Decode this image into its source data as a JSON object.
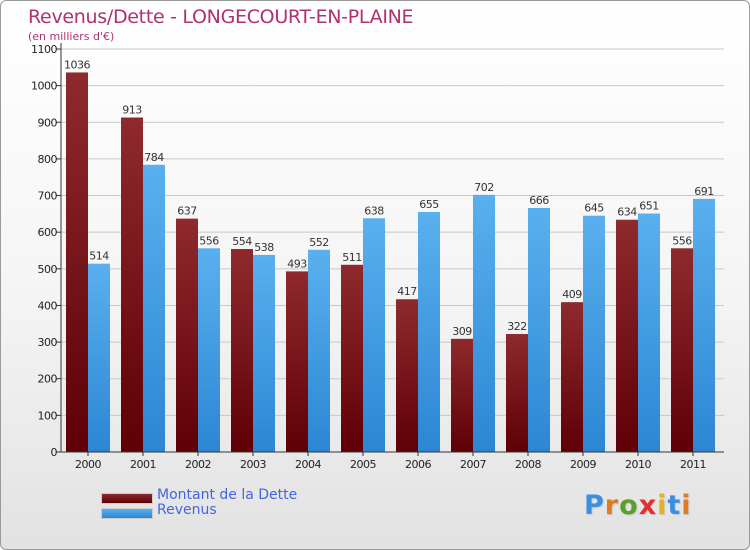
{
  "title": "Revenus/Dette - LONGECOURT-EN-PLAINE",
  "subtitle": "(en milliers d'€)",
  "logo": {
    "text": "Proxiti",
    "letter_colors": [
      "#3b8fe0",
      "#e07b20",
      "#5aa02c",
      "#e03030",
      "#e8b020",
      "#3b8fe0",
      "#e07b20"
    ]
  },
  "colors": {
    "dette_dark": "#5e0006",
    "dette_light": "#8e2a2e",
    "revenus_dark": "#2c86d3",
    "revenus_light": "#5ab0ee",
    "grid": "#c8c8c8",
    "axis_text": "#222222",
    "title": "#b03070",
    "legend_text": "#4466dd"
  },
  "chart_data": {
    "type": "bar",
    "title": "Revenus/Dette - LONGECOURT-EN-PLAINE",
    "subtitle": "(en milliers d'€)",
    "xlabel": "",
    "ylabel": "",
    "ylim": [
      0,
      1100
    ],
    "yticks": [
      0,
      100,
      200,
      300,
      400,
      500,
      600,
      700,
      800,
      900,
      1000,
      1100
    ],
    "grid": true,
    "legend_position": "bottom-left",
    "categories": [
      "2000",
      "2001",
      "2002",
      "2003",
      "2004",
      "2005",
      "2006",
      "2007",
      "2008",
      "2009",
      "2010",
      "2011"
    ],
    "series": [
      {
        "name": "Montant de la Dette",
        "color": "#6e0a10",
        "values": [
          1036,
          913,
          637,
          554,
          493,
          511,
          417,
          309,
          322,
          409,
          634,
          556
        ]
      },
      {
        "name": "Revenus",
        "color": "#3c9be2",
        "values": [
          514,
          784,
          556,
          538,
          552,
          638,
          655,
          702,
          666,
          645,
          651,
          691
        ]
      }
    ]
  }
}
